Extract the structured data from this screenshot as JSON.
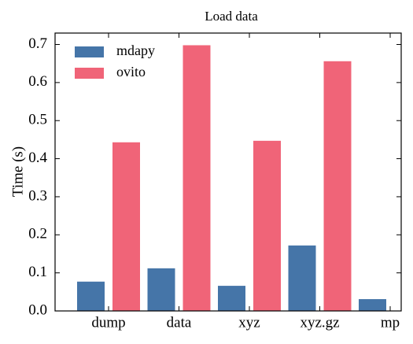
{
  "chart_data": {
    "type": "bar",
    "title": "Load data",
    "ylabel": "Time (s)",
    "categories": [
      "dump",
      "data",
      "xyz",
      "xyz.gz",
      "mp"
    ],
    "series": [
      {
        "name": "mdapy",
        "color": "#4575a8",
        "values": [
          0.077,
          0.112,
          0.066,
          0.172,
          0.031
        ]
      },
      {
        "name": "ovito",
        "color": "#f06478",
        "values": [
          0.443,
          0.698,
          0.447,
          0.656,
          null
        ]
      }
    ],
    "ylim": [
      0,
      0.73
    ],
    "yticks": [
      {
        "value": 0,
        "label": "0.0"
      },
      0.1,
      0.2,
      0.3,
      0.4,
      0.5,
      0.6,
      0.7
    ],
    "legend": "upper left"
  }
}
